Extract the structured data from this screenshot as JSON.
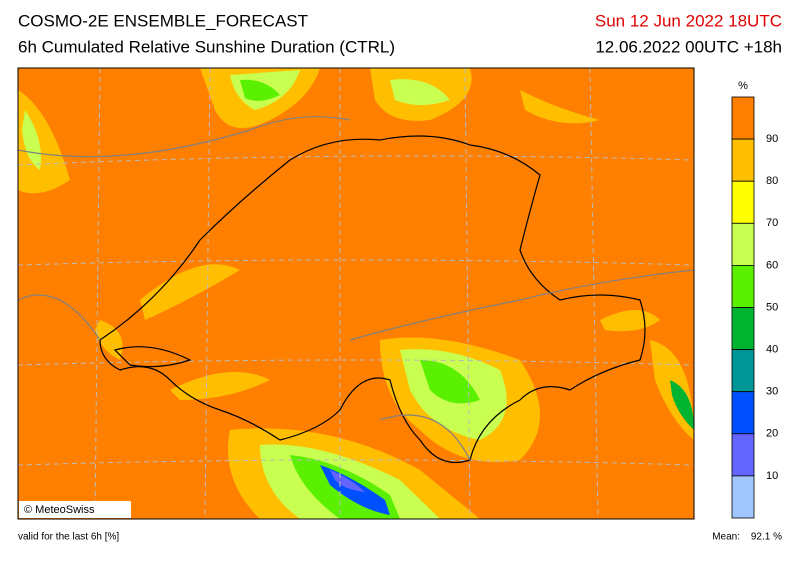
{
  "header": {
    "title": "COSMO-2E ENSEMBLE_FORECAST",
    "subtitle": "6h Cumulated Relative Sunshine Duration (CTRL)",
    "valid_time": "Sun 12 Jun 2022 18UTC",
    "run": "12.06.2022 00UTC +18h"
  },
  "legend": {
    "unit": "%",
    "ticks": [
      90,
      80,
      70,
      60,
      50,
      40,
      30,
      20,
      10
    ],
    "colors": [
      "#ff7f00",
      "#ffbf00",
      "#ffff00",
      "#c8ff50",
      "#5af000",
      "#00b432",
      "#009696",
      "#0050ff",
      "#6464ff",
      "#a0c8ff"
    ]
  },
  "map": {
    "copyright": "© MeteoSwiss"
  },
  "footer": {
    "note": "valid for the last 6h [%]",
    "mean_label": "Mean:",
    "mean": "92.1 %"
  }
}
